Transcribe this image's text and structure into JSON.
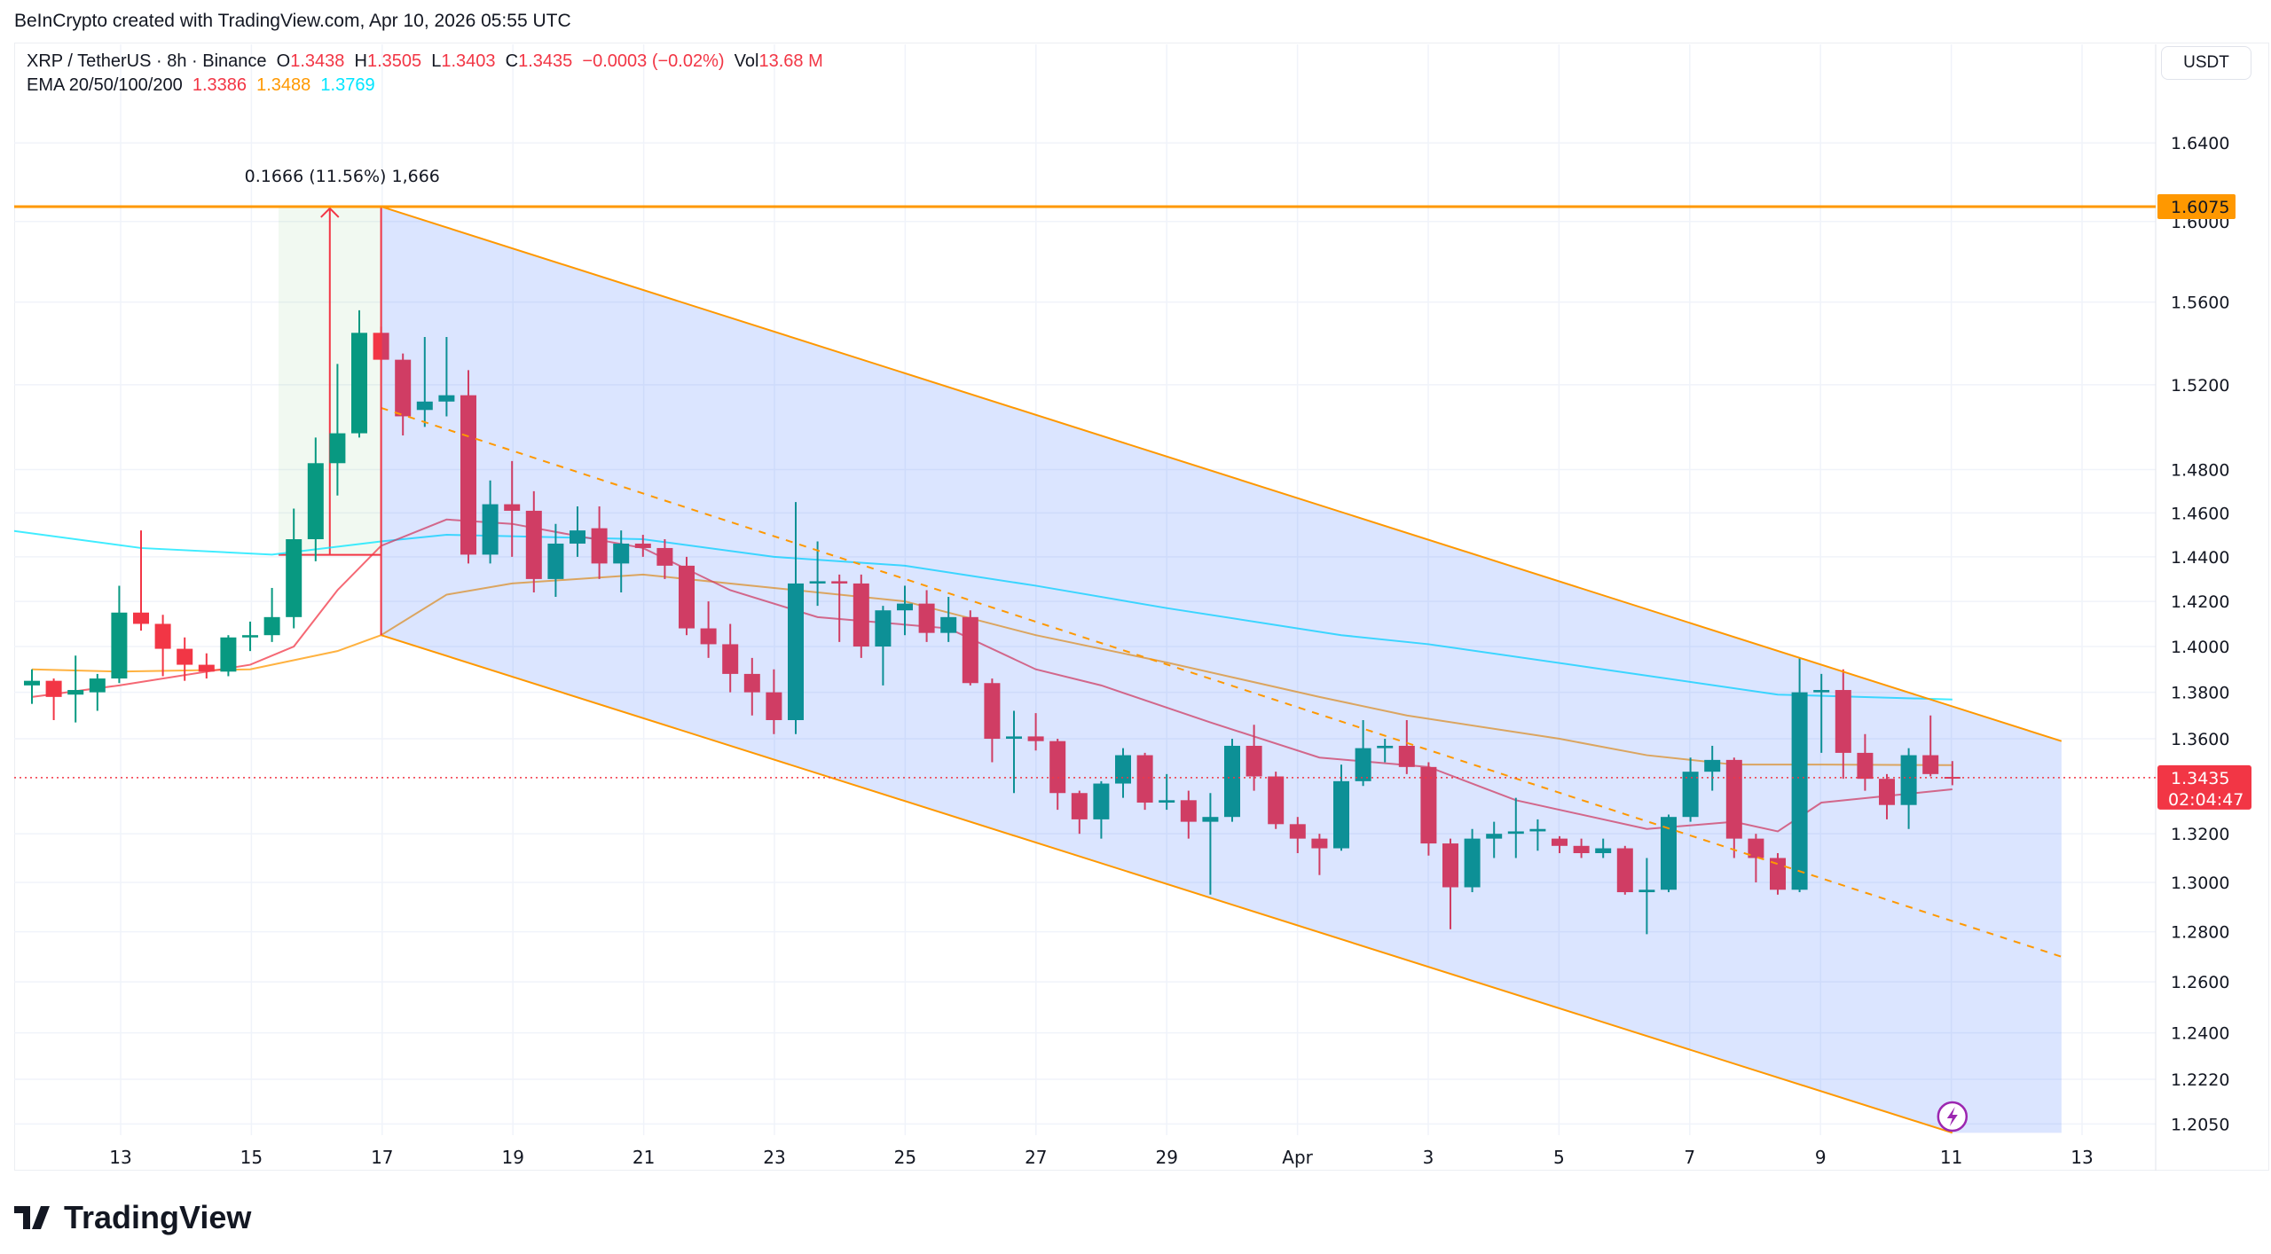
{
  "header": {
    "credit": "BeInCrypto created with TradingView.com, Apr 10, 2026 05:55 UTC"
  },
  "legend": {
    "symbol": "XRP / TetherUS · 8h · Binance",
    "o_label": "O",
    "o": "1.3438",
    "h_label": "H",
    "h": "1.3505",
    "l_label": "L",
    "l": "1.3403",
    "c_label": "C",
    "c": "1.3435",
    "change": "−0.0003 (−0.02%)",
    "vol_label": "Vol",
    "vol": "13.68 M",
    "ema_label": "EMA 20/50/100/200",
    "ema20": "1.3386",
    "ema50": "1.3488",
    "ema200": "1.3769"
  },
  "price_axis": {
    "unit": "USDT",
    "ticks": [
      "1.6400",
      "1.6000",
      "1.5600",
      "1.5200",
      "1.4800",
      "1.4600",
      "1.4400",
      "1.4200",
      "1.4000",
      "1.3800",
      "1.3600",
      "1.3200",
      "1.3000",
      "1.2800",
      "1.2600",
      "1.2400",
      "1.2220",
      "1.2050"
    ],
    "level_label": "1.6075",
    "last_price": "1.3435",
    "countdown": "02:04:47"
  },
  "time_axis": {
    "labels": [
      "13",
      "15",
      "17",
      "19",
      "21",
      "23",
      "25",
      "27",
      "29",
      "Apr",
      "3",
      "5",
      "7",
      "9",
      "11",
      "13"
    ]
  },
  "measure": {
    "label": "0.1666 (11.56%) 1,666",
    "from": 1.4409,
    "to": 1.6075
  },
  "colors": {
    "up": "#089981",
    "down": "#f23645",
    "ema20": "#f23645",
    "ema50": "#ff9800",
    "ema200": "#00e5ff",
    "channel": "#ff9800",
    "channel_fill": "#2962ff",
    "level": "#ff9800"
  },
  "logo": {
    "text": "TradingView"
  },
  "chart_data": {
    "type": "candlestick",
    "interval": "8h",
    "scale": "log",
    "ylim": [
      1.205,
      1.66
    ],
    "candles": [
      [
        1.383,
        1.39,
        1.375,
        1.385
      ],
      [
        1.385,
        1.386,
        1.368,
        1.378
      ],
      [
        1.379,
        1.396,
        1.367,
        1.381
      ],
      [
        1.38,
        1.388,
        1.372,
        1.386
      ],
      [
        1.386,
        1.427,
        1.384,
        1.415
      ],
      [
        1.415,
        1.452,
        1.407,
        1.41
      ],
      [
        1.41,
        1.414,
        1.387,
        1.399
      ],
      [
        1.399,
        1.404,
        1.385,
        1.392
      ],
      [
        1.392,
        1.397,
        1.386,
        1.389
      ],
      [
        1.389,
        1.405,
        1.387,
        1.404
      ],
      [
        1.404,
        1.411,
        1.398,
        1.405
      ],
      [
        1.405,
        1.426,
        1.402,
        1.413
      ],
      [
        1.413,
        1.462,
        1.408,
        1.448
      ],
      [
        1.448,
        1.495,
        1.438,
        1.483
      ],
      [
        1.483,
        1.53,
        1.468,
        1.497
      ],
      [
        1.497,
        1.556,
        1.495,
        1.545
      ],
      [
        1.545,
        1.548,
        1.532,
        1.532
      ],
      [
        1.532,
        1.535,
        1.496,
        1.505
      ],
      [
        1.508,
        1.543,
        1.5,
        1.512
      ],
      [
        1.512,
        1.543,
        1.505,
        1.515
      ],
      [
        1.515,
        1.527,
        1.437,
        1.441
      ],
      [
        1.441,
        1.475,
        1.437,
        1.464
      ],
      [
        1.464,
        1.484,
        1.44,
        1.461
      ],
      [
        1.461,
        1.47,
        1.424,
        1.43
      ],
      [
        1.43,
        1.455,
        1.422,
        1.446
      ],
      [
        1.446,
        1.463,
        1.44,
        1.452
      ],
      [
        1.453,
        1.463,
        1.43,
        1.437
      ],
      [
        1.437,
        1.452,
        1.424,
        1.446
      ],
      [
        1.446,
        1.45,
        1.44,
        1.444
      ],
      [
        1.444,
        1.448,
        1.43,
        1.436
      ],
      [
        1.436,
        1.44,
        1.405,
        1.408
      ],
      [
        1.408,
        1.42,
        1.395,
        1.401
      ],
      [
        1.401,
        1.41,
        1.38,
        1.388
      ],
      [
        1.388,
        1.395,
        1.37,
        1.38
      ],
      [
        1.38,
        1.39,
        1.362,
        1.368
      ],
      [
        1.368,
        1.465,
        1.362,
        1.428
      ],
      [
        1.428,
        1.447,
        1.418,
        1.429
      ],
      [
        1.429,
        1.432,
        1.402,
        1.428
      ],
      [
        1.428,
        1.432,
        1.395,
        1.4
      ],
      [
        1.4,
        1.418,
        1.383,
        1.416
      ],
      [
        1.416,
        1.427,
        1.405,
        1.419
      ],
      [
        1.419,
        1.425,
        1.402,
        1.406
      ],
      [
        1.406,
        1.422,
        1.402,
        1.413
      ],
      [
        1.413,
        1.416,
        1.383,
        1.384
      ],
      [
        1.384,
        1.386,
        1.35,
        1.36
      ],
      [
        1.36,
        1.372,
        1.337,
        1.361
      ],
      [
        1.361,
        1.371,
        1.355,
        1.359
      ],
      [
        1.359,
        1.36,
        1.33,
        1.337
      ],
      [
        1.337,
        1.338,
        1.32,
        1.326
      ],
      [
        1.326,
        1.342,
        1.318,
        1.341
      ],
      [
        1.341,
        1.356,
        1.335,
        1.353
      ],
      [
        1.353,
        1.354,
        1.33,
        1.333
      ],
      [
        1.333,
        1.345,
        1.33,
        1.334
      ],
      [
        1.334,
        1.338,
        1.318,
        1.325
      ],
      [
        1.325,
        1.337,
        1.295,
        1.327
      ],
      [
        1.327,
        1.36,
        1.325,
        1.357
      ],
      [
        1.357,
        1.366,
        1.338,
        1.344
      ],
      [
        1.344,
        1.346,
        1.322,
        1.324
      ],
      [
        1.324,
        1.327,
        1.312,
        1.318
      ],
      [
        1.318,
        1.32,
        1.303,
        1.314
      ],
      [
        1.314,
        1.349,
        1.313,
        1.342
      ],
      [
        1.342,
        1.368,
        1.34,
        1.356
      ],
      [
        1.356,
        1.36,
        1.35,
        1.357
      ],
      [
        1.357,
        1.368,
        1.345,
        1.348
      ],
      [
        1.348,
        1.35,
        1.311,
        1.316
      ],
      [
        1.316,
        1.318,
        1.281,
        1.298
      ],
      [
        1.298,
        1.322,
        1.296,
        1.318
      ],
      [
        1.318,
        1.325,
        1.31,
        1.32
      ],
      [
        1.32,
        1.335,
        1.31,
        1.321
      ],
      [
        1.321,
        1.326,
        1.313,
        1.322
      ],
      [
        1.318,
        1.319,
        1.312,
        1.315
      ],
      [
        1.315,
        1.318,
        1.31,
        1.312
      ],
      [
        1.312,
        1.318,
        1.31,
        1.314
      ],
      [
        1.314,
        1.315,
        1.295,
        1.296
      ],
      [
        1.296,
        1.31,
        1.279,
        1.297
      ],
      [
        1.297,
        1.328,
        1.296,
        1.327
      ],
      [
        1.327,
        1.352,
        1.325,
        1.346
      ],
      [
        1.346,
        1.357,
        1.338,
        1.351
      ],
      [
        1.351,
        1.352,
        1.31,
        1.318
      ],
      [
        1.318,
        1.32,
        1.3,
        1.31
      ],
      [
        1.31,
        1.312,
        1.295,
        1.297
      ],
      [
        1.297,
        1.395,
        1.296,
        1.38
      ],
      [
        1.38,
        1.388,
        1.354,
        1.381
      ],
      [
        1.381,
        1.39,
        1.343,
        1.354
      ],
      [
        1.354,
        1.362,
        1.338,
        1.343
      ],
      [
        1.343,
        1.345,
        1.326,
        1.332
      ],
      [
        1.332,
        1.356,
        1.322,
        1.353
      ],
      [
        1.353,
        1.37,
        1.344,
        1.345
      ],
      [
        1.3438,
        1.3505,
        1.3403,
        1.3435
      ]
    ],
    "ema20": [
      [
        0,
        1.378
      ],
      [
        4,
        1.383
      ],
      [
        10,
        1.392
      ],
      [
        12,
        1.4
      ],
      [
        14,
        1.425
      ],
      [
        16,
        1.445
      ],
      [
        19,
        1.457
      ],
      [
        22,
        1.455
      ],
      [
        28,
        1.444
      ],
      [
        32,
        1.425
      ],
      [
        36,
        1.413
      ],
      [
        42,
        1.408
      ],
      [
        46,
        1.39
      ],
      [
        49,
        1.383
      ],
      [
        54,
        1.367
      ],
      [
        59,
        1.352
      ],
      [
        64,
        1.348
      ],
      [
        68,
        1.334
      ],
      [
        74,
        1.322
      ],
      [
        78,
        1.325
      ],
      [
        80,
        1.321
      ],
      [
        82,
        1.333
      ],
      [
        88,
        1.3386
      ]
    ],
    "ema50": [
      [
        0,
        1.39
      ],
      [
        4,
        1.389
      ],
      [
        10,
        1.39
      ],
      [
        14,
        1.398
      ],
      [
        16,
        1.405
      ],
      [
        19,
        1.423
      ],
      [
        22,
        1.428
      ],
      [
        28,
        1.432
      ],
      [
        34,
        1.426
      ],
      [
        40,
        1.42
      ],
      [
        46,
        1.405
      ],
      [
        52,
        1.393
      ],
      [
        59,
        1.378
      ],
      [
        63,
        1.37
      ],
      [
        70,
        1.36
      ],
      [
        74,
        1.353
      ],
      [
        78,
        1.349
      ],
      [
        82,
        1.349
      ],
      [
        88,
        1.3488
      ]
    ],
    "ema200": [
      [
        -1,
        1.452
      ],
      [
        5,
        1.444
      ],
      [
        11,
        1.441
      ],
      [
        16,
        1.447
      ],
      [
        19,
        1.45
      ],
      [
        28,
        1.448
      ],
      [
        34,
        1.44
      ],
      [
        40,
        1.436
      ],
      [
        46,
        1.427
      ],
      [
        52,
        1.417
      ],
      [
        60,
        1.405
      ],
      [
        64,
        1.401
      ],
      [
        72,
        1.39
      ],
      [
        80,
        1.379
      ],
      [
        88,
        1.3769
      ]
    ],
    "channel": {
      "upper": [
        [
          16,
          1.6075
        ],
        [
          93,
          1.359
        ]
      ],
      "mid": [
        [
          16,
          1.509
        ],
        [
          93,
          1.27
        ]
      ],
      "lower": [
        [
          16,
          1.405
        ],
        [
          88,
          1.205
        ]
      ]
    },
    "horizontal_level": 1.6075
  }
}
